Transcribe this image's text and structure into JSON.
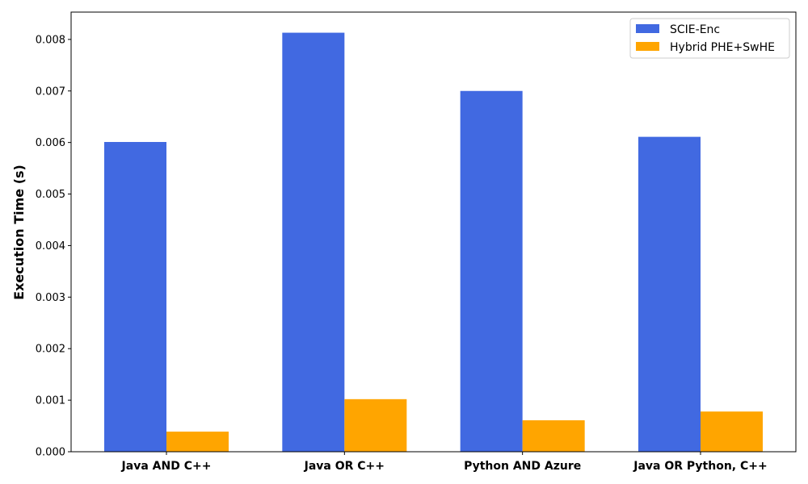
{
  "chart_data": {
    "type": "bar",
    "categories": [
      "Java AND C++",
      "Java OR C++",
      "Python AND Azure",
      "Java OR Python, C++"
    ],
    "series": [
      {
        "name": "SCIE-Enc",
        "values": [
          0.00601,
          0.00813,
          0.007,
          0.00611
        ],
        "color": "#4169E1"
      },
      {
        "name": "Hybrid PHE+SwHE",
        "values": [
          0.00039,
          0.00102,
          0.00061,
          0.00078
        ],
        "color": "#FFA500"
      }
    ],
    "title": "",
    "xlabel": "",
    "ylabel": "Execution Time (s)",
    "ylim": [
      0,
      0.00853
    ],
    "yticks": [
      "0.000",
      "0.001",
      "0.002",
      "0.003",
      "0.004",
      "0.005",
      "0.006",
      "0.007",
      "0.008"
    ],
    "grid": false,
    "legend_position": "top-right"
  }
}
